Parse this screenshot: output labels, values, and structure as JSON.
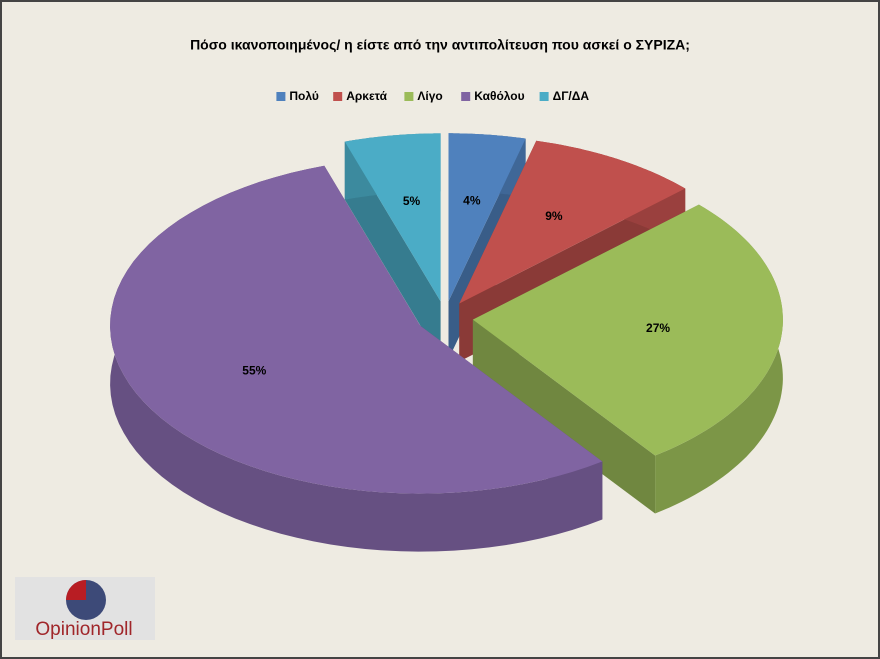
{
  "chart_data": {
    "type": "pie",
    "title": "Πόσο ικανοποιημένος/ η είστε από την αντιπολίτευση που ασκεί ο ΣΥΡΙΖΑ;",
    "categories": [
      "Πολύ",
      "Αρκετά",
      "Λίγο",
      "Καθόλου",
      "ΔΓ/ΔΑ"
    ],
    "values": [
      4,
      9,
      27,
      55,
      5
    ],
    "value_labels": [
      "4%",
      "9%",
      "27%",
      "55%",
      "5%"
    ],
    "colors": [
      "#4f81bd",
      "#c0504d",
      "#9bbb59",
      "#8064a2",
      "#4bacc6"
    ],
    "legend": "top"
  },
  "logo": {
    "text": "OpinionPoll"
  }
}
